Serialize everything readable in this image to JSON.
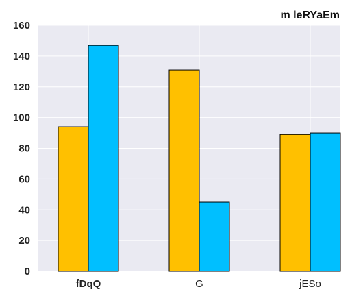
{
  "chart_data": {
    "type": "bar",
    "title": "m leRYaEm",
    "xlabel": "",
    "ylabel": "",
    "categories": [
      "fDqQ",
      "G",
      "jESo"
    ],
    "category_label_bold": [
      true,
      false,
      false
    ],
    "series": [
      {
        "values": [
          94,
          131,
          89
        ],
        "color": "#FFC000"
      },
      {
        "values": [
          147,
          45,
          90
        ],
        "color": "#00BFFF"
      }
    ],
    "ylim": [
      0,
      160
    ],
    "yticks": [
      0,
      20,
      40,
      60,
      80,
      100,
      120,
      140,
      160
    ],
    "grid": true,
    "legend": "none",
    "plot_background": "#EAEAF2"
  }
}
